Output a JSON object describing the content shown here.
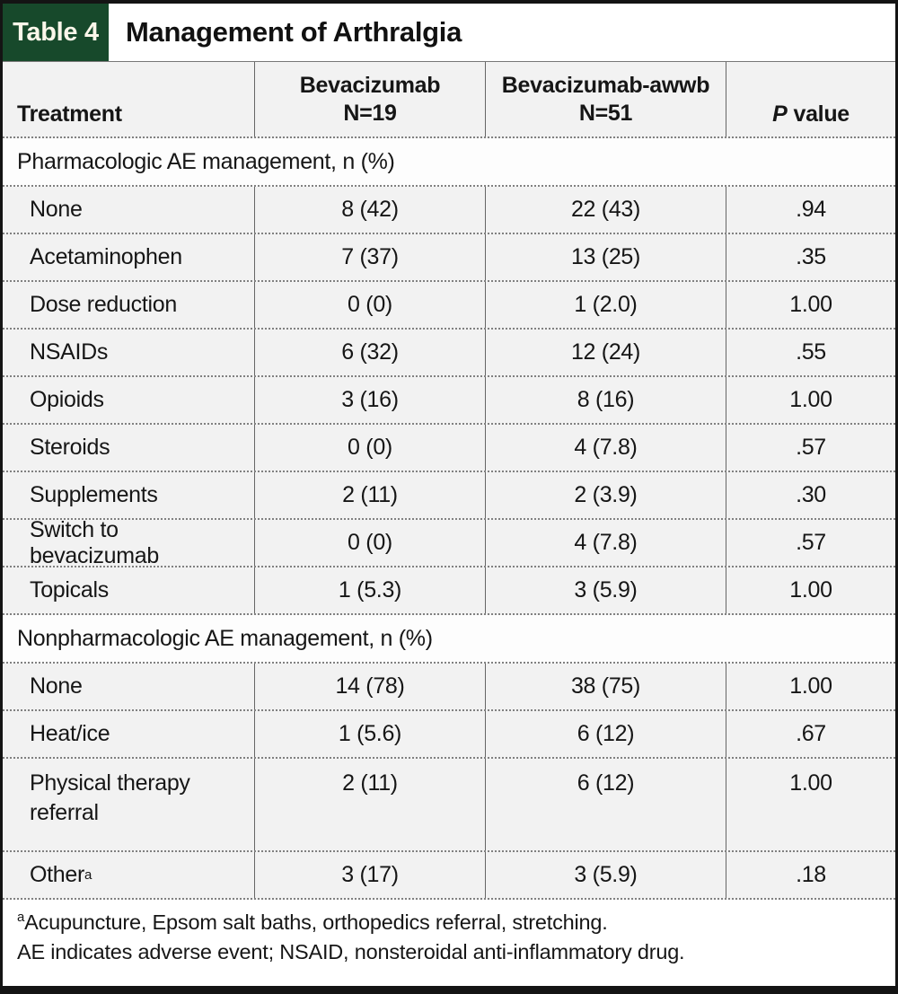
{
  "colors": {
    "header_green": "#17492b",
    "row_gray": "#f2f2f2",
    "frame_black": "#141414"
  },
  "title_bar": {
    "tag": "Table 4",
    "title": "Management of Arthralgia"
  },
  "header": {
    "treatment": "Treatment",
    "col_bev_line1": "Bevacizumab",
    "col_bev_line2": "N=19",
    "col_awwb_line1": "Bevacizumab-awwb",
    "col_awwb_line2": "N=51",
    "p_italic": "P",
    "p_rest": "value"
  },
  "sections": [
    {
      "label": "Pharmacologic AE management, n (%)",
      "rows": [
        {
          "treatment": "None",
          "bev": "8 (42)",
          "awwb": "22 (43)",
          "p": ".94"
        },
        {
          "treatment": "Acetaminophen",
          "bev": "7 (37)",
          "awwb": "13 (25)",
          "p": ".35"
        },
        {
          "treatment": "Dose reduction",
          "bev": "0 (0)",
          "awwb": "1 (2.0)",
          "p": "1.00"
        },
        {
          "treatment": "NSAIDs",
          "bev": "6 (32)",
          "awwb": "12 (24)",
          "p": ".55"
        },
        {
          "treatment": "Opioids",
          "bev": "3 (16)",
          "awwb": "8 (16)",
          "p": "1.00"
        },
        {
          "treatment": "Steroids",
          "bev": "0 (0)",
          "awwb": "4 (7.8)",
          "p": ".57"
        },
        {
          "treatment": "Supplements",
          "bev": "2 (11)",
          "awwb": "2 (3.9)",
          "p": ".30"
        },
        {
          "treatment": "Switch to bevacizumab",
          "bev": "0 (0)",
          "awwb": "4 (7.8)",
          "p": ".57"
        },
        {
          "treatment": "Topicals",
          "bev": "1 (5.3)",
          "awwb": "3 (5.9)",
          "p": "1.00"
        }
      ]
    },
    {
      "label": "Nonpharmacologic AE management, n (%)",
      "rows": [
        {
          "treatment": "None",
          "bev": "14 (78)",
          "awwb": "38 (75)",
          "p": "1.00"
        },
        {
          "treatment": "Heat/ice",
          "bev": "1 (5.6)",
          "awwb": "6 (12)",
          "p": ".67"
        },
        {
          "treatment": "Physical therapy referral",
          "bev": "2 (11)",
          "awwb": "6 (12)",
          "p": "1.00"
        },
        {
          "treatment": "Other",
          "sup": "a",
          "bev": "3 (17)",
          "awwb": "3 (5.9)",
          "p": ".18"
        }
      ]
    }
  ],
  "footnotes": {
    "sup_marker": "a",
    "line1": "Acupuncture, Epsom salt baths, orthopedics referral, stretching.",
    "line2": "AE indicates adverse event; NSAID, nonsteroidal anti-inflammatory drug."
  }
}
